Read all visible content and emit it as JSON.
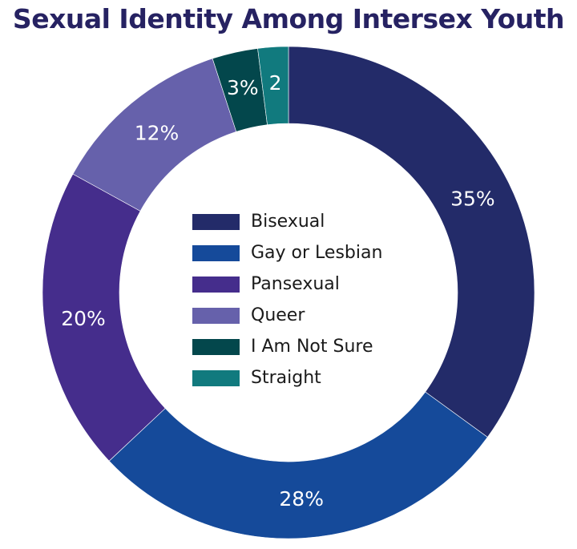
{
  "title": "Sexual Identity Among Intersex Youth",
  "chart_data": {
    "type": "pie",
    "subtype": "donut",
    "title": "Sexual Identity Among Intersex Youth",
    "categories": [
      "Bisexual",
      "Gay or Lesbian",
      "Pansexual",
      "Queer",
      "I Am Not Sure",
      "Straight"
    ],
    "values": [
      35,
      28,
      20,
      12,
      3,
      2
    ],
    "unit": "%",
    "data_labels": [
      "35%",
      "28%",
      "20%",
      "12%",
      "3%",
      "2"
    ],
    "colors": [
      "#232B69",
      "#154A9A",
      "#452D8C",
      "#6661AB",
      "#03474C",
      "#117A7E"
    ],
    "legend_position": "center",
    "start_angle": "top (12 o'clock), clockwise"
  },
  "legend": {
    "items": [
      {
        "label": "Bisexual",
        "color": "#232B69"
      },
      {
        "label": "Gay or Lesbian",
        "color": "#154A9A"
      },
      {
        "label": "Pansexual",
        "color": "#452D8C"
      },
      {
        "label": "Queer",
        "color": "#6661AB"
      },
      {
        "label": "I Am Not Sure",
        "color": "#03474C"
      },
      {
        "label": "Straight",
        "color": "#117A7E"
      }
    ]
  }
}
